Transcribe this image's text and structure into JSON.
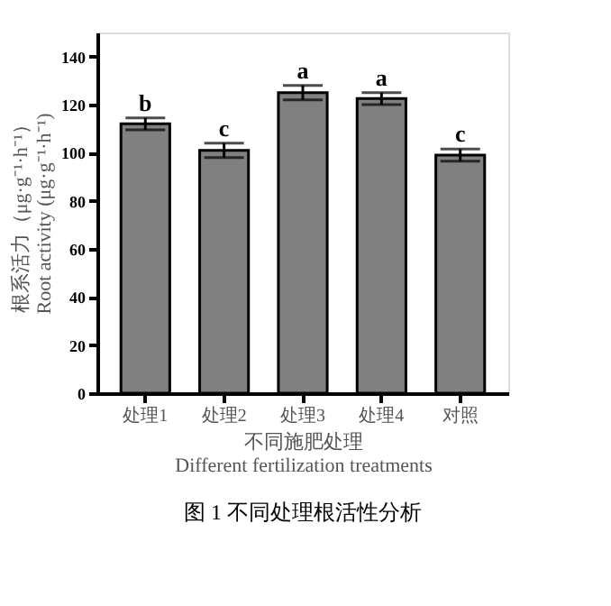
{
  "chart_data": {
    "type": "bar",
    "categories": [
      "处理1",
      "处理2",
      "处理3",
      "处理4",
      "对照"
    ],
    "values": [
      112,
      101,
      125,
      122.5,
      99
    ],
    "errors": [
      2.5,
      3,
      3,
      2.5,
      2.5
    ],
    "color": "#808080",
    "xlabel": "不同施肥处理\nDifferent fertilization treatments",
    "ylabel": "根系活力（μg·g⁻¹·h⁻¹）\nRoot activity (μg·g⁻¹·h⁻¹)",
    "ylim": [
      0,
      150
    ],
    "yticks": [
      0,
      20,
      40,
      60,
      80,
      100,
      120,
      140
    ],
    "grid": false,
    "annotations": [
      {
        "text": "b",
        "x": "处理1",
        "y": 114.5
      },
      {
        "text": "c",
        "x": "处理2",
        "y": 104
      },
      {
        "text": "a",
        "x": "处理3",
        "y": 128
      },
      {
        "text": "a",
        "x": "处理4",
        "y": 125
      },
      {
        "text": "c",
        "x": "对照",
        "y": 101.5
      },
      "图 1 不同处理根活性分析"
    ]
  }
}
